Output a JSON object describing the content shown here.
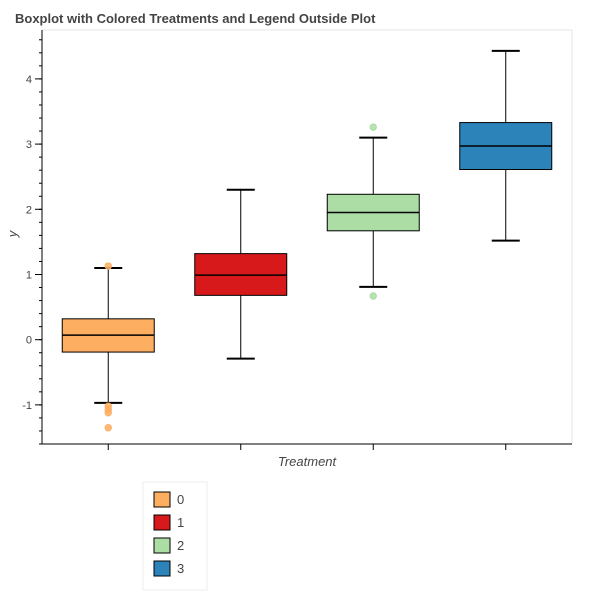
{
  "chart_data": {
    "type": "boxplot",
    "title": "Boxplot with Colored Treatments and Legend Outside Plot",
    "xlabel": "Treatment",
    "ylabel": "y",
    "ylim": [
      -1.6,
      4.75
    ],
    "yticks": [
      -1,
      0,
      1,
      2,
      3,
      4
    ],
    "yticklabels": [
      "-1",
      "0",
      "1",
      "2",
      "3",
      "4"
    ],
    "grid": false,
    "legend_placement": "bottom-left, outside plot",
    "categories": [
      "0",
      "1",
      "2",
      "3"
    ],
    "series": [
      {
        "name": "0",
        "color": "#fdae61",
        "whisker_low": -0.97,
        "q1": -0.19,
        "median": 0.07,
        "q3": 0.32,
        "whisker_high": 1.1,
        "outliers": [
          1.13,
          -1.02,
          -1.07,
          -1.12,
          -1.35
        ]
      },
      {
        "name": "1",
        "color": "#d7191c",
        "whisker_low": -0.29,
        "q1": 0.68,
        "median": 0.99,
        "q3": 1.32,
        "whisker_high": 2.3,
        "outliers": []
      },
      {
        "name": "2",
        "color": "#abdda4",
        "whisker_low": 0.81,
        "q1": 1.67,
        "median": 1.95,
        "q3": 2.23,
        "whisker_high": 3.1,
        "outliers": [
          3.26,
          0.67
        ]
      },
      {
        "name": "3",
        "color": "#2b83ba",
        "whisker_low": 1.52,
        "q1": 2.61,
        "median": 2.97,
        "q3": 3.33,
        "whisker_high": 4.43,
        "outliers": []
      }
    ]
  }
}
